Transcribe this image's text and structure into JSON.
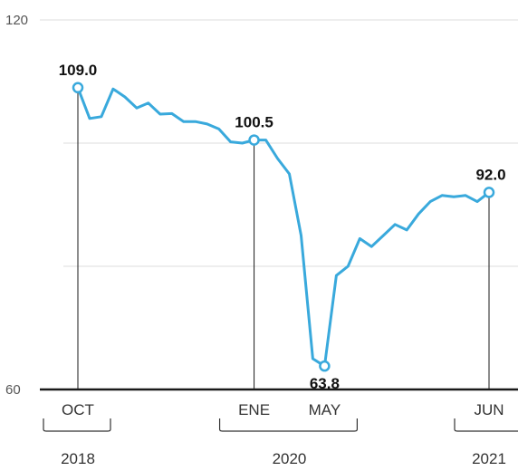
{
  "chart_data": {
    "type": "line",
    "ylim": [
      60,
      120
    ],
    "yticks": [
      {
        "value": 120,
        "label": "120"
      },
      {
        "value": 60,
        "label": "60"
      }
    ],
    "gridlines": [
      80,
      100,
      120
    ],
    "line_color": "#39a9dc",
    "series": [
      {
        "values": [
          109.0,
          104.0,
          104.3,
          108.8,
          107.5,
          105.7,
          106.5,
          104.7,
          104.8,
          103.5,
          103.5,
          103.1,
          102.3,
          100.2,
          100.0,
          100.5,
          100.5,
          97.5,
          95.0,
          85.0,
          65.0,
          63.8,
          78.5,
          80.0,
          84.5,
          83.2,
          85.0,
          86.8,
          85.9,
          88.5,
          90.5,
          91.5,
          91.3,
          91.5,
          90.5,
          92.0
        ]
      }
    ],
    "month_labels": [
      {
        "label": "OCT",
        "index": 0
      },
      {
        "label": "ENE",
        "index": 15
      },
      {
        "label": "MAY",
        "index": 21
      },
      {
        "label": "JUN",
        "index": 35
      }
    ],
    "year_labels": [
      {
        "label": "2018",
        "from": 0,
        "to": 0
      },
      {
        "label": "2020",
        "from": 15,
        "to": 21
      },
      {
        "label": "2021",
        "from": 35,
        "to": 35
      }
    ],
    "annotations": [
      {
        "index": 0,
        "value": 109.0,
        "label": "109.0",
        "placement": "above"
      },
      {
        "index": 15,
        "value": 100.5,
        "label": "100.5",
        "placement": "above"
      },
      {
        "index": 21,
        "value": 63.8,
        "label": "63.8",
        "placement": "below"
      },
      {
        "index": 35,
        "value": 92.0,
        "label": "92.0",
        "placement": "above"
      }
    ]
  }
}
